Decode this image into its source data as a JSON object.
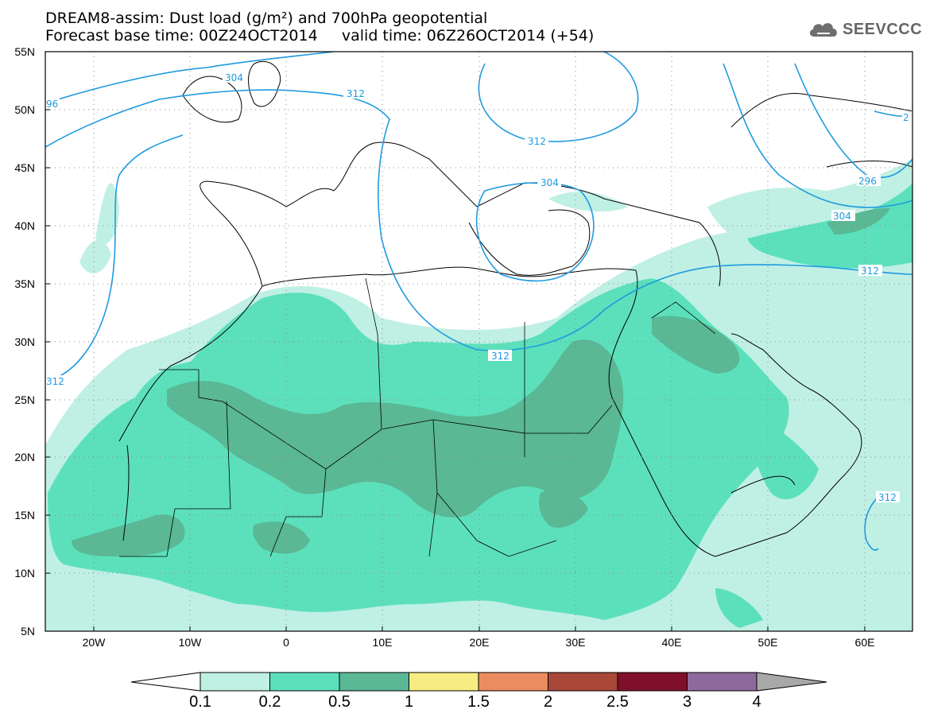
{
  "title": {
    "line1": "DREAM8-assim: Dust load (g/m²) and 700hPa geopotential",
    "line2": "Forecast base time: 00Z24OCT2014     valid time: 06Z26OCT2014 (+54)"
  },
  "logo": {
    "text": "SEEVCCC",
    "icon": "cloud-logo-icon"
  },
  "map": {
    "lat_ticks": [
      "55N",
      "50N",
      "45N",
      "40N",
      "35N",
      "30N",
      "25N",
      "20N",
      "15N",
      "10N",
      "5N"
    ],
    "lon_ticks": [
      "20W",
      "10W",
      "0",
      "10E",
      "20E",
      "30E",
      "40E",
      "50E",
      "60E"
    ],
    "lon_range": [
      -25,
      65
    ],
    "lat_range": [
      5,
      55
    ],
    "contour_labels": [
      "304",
      "96",
      "312",
      "312",
      "304",
      "312",
      "312",
      "296",
      "304",
      "312",
      "312",
      "2"
    ],
    "contour_color": "#1e9be0"
  },
  "colorbar": {
    "colors": [
      "#c0f0e4",
      "#5ce0bc",
      "#5ab894",
      "#f6ec82",
      "#eb8c60",
      "#a94838",
      "#80102a",
      "#8e6a9c"
    ],
    "under_color": "#ffffff",
    "over_color": "#a8a8a8",
    "labels": [
      "0.1",
      "0.2",
      "0.5",
      "1",
      "1.5",
      "2",
      "2.5",
      "3",
      "4"
    ]
  }
}
